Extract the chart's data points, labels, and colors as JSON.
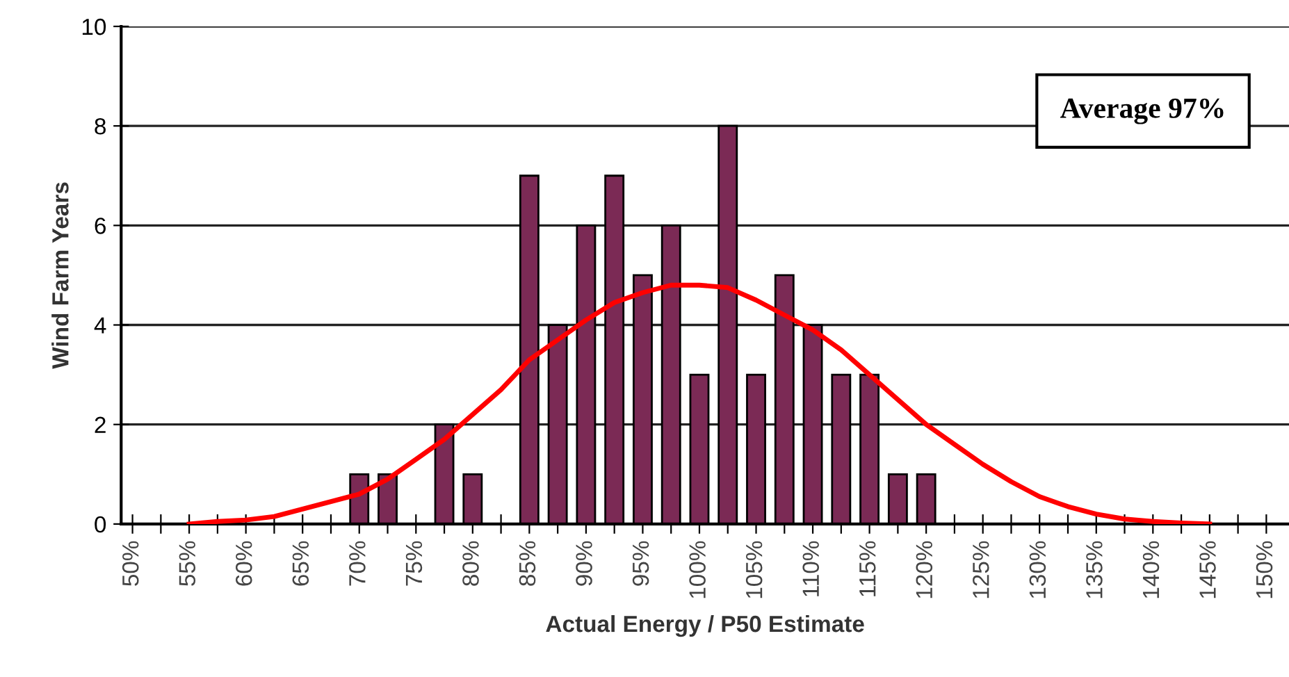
{
  "chart_data": {
    "type": "bar",
    "xlabel": "Actual Energy / P50 Estimate",
    "ylabel": "Wind Farm Years",
    "series": [
      {
        "color": "#7b2a55",
        "x": [
          70,
          72.5,
          77.5,
          80,
          85,
          87.5,
          90,
          92.5,
          95,
          97.5,
          100,
          102.5,
          105,
          107.5,
          110,
          112.5,
          115,
          117.5,
          120
        ],
        "values": [
          1,
          1,
          2,
          1,
          7,
          4,
          6,
          7,
          5,
          6,
          3,
          8,
          3,
          5,
          4,
          3,
          3,
          1,
          1
        ]
      },
      {
        "type": "line",
        "color": "#ff0000",
        "line_style": "solid",
        "x": [
          55,
          57.5,
          60,
          62.5,
          65,
          67.5,
          70,
          72.5,
          75,
          77.5,
          80,
          82.5,
          85,
          87.5,
          90,
          92.5,
          95,
          97.5,
          100,
          102.5,
          105,
          107.5,
          110,
          112.5,
          115,
          117.5,
          120,
          122.5,
          125,
          127.5,
          130,
          132.5,
          135,
          137.5,
          140,
          142.5,
          145
        ],
        "values": [
          0,
          0.05,
          0.08,
          0.15,
          0.3,
          0.45,
          0.6,
          0.9,
          1.3,
          1.7,
          2.2,
          2.7,
          3.3,
          3.7,
          4.1,
          4.45,
          4.65,
          4.8,
          4.8,
          4.75,
          4.5,
          4.2,
          3.9,
          3.5,
          3.0,
          2.5,
          2.0,
          1.6,
          1.2,
          0.85,
          0.55,
          0.35,
          0.2,
          0.1,
          0.05,
          0.02,
          0
        ]
      }
    ],
    "annotations": [
      "Average 97%"
    ],
    "xlim": [
      49,
      152
    ],
    "ylim": [
      0,
      10
    ],
    "yticks": [
      0,
      2,
      4,
      6,
      8,
      10
    ],
    "xticks": [
      {
        "value": 50,
        "label": "50%"
      },
      {
        "value": 52.5,
        "label": null
      },
      {
        "value": 55,
        "label": "55%"
      },
      {
        "value": 57.5,
        "label": null
      },
      {
        "value": 60,
        "label": "60%"
      },
      {
        "value": 62.5,
        "label": null
      },
      {
        "value": 65,
        "label": "65%"
      },
      {
        "value": 67.5,
        "label": null
      },
      {
        "value": 70,
        "label": "70%"
      },
      {
        "value": 72.5,
        "label": null
      },
      {
        "value": 75,
        "label": "75%"
      },
      {
        "value": 77.5,
        "label": null
      },
      {
        "value": 80,
        "label": "80%"
      },
      {
        "value": 82.5,
        "label": null
      },
      {
        "value": 85,
        "label": "85%"
      },
      {
        "value": 87.5,
        "label": null
      },
      {
        "value": 90,
        "label": "90%"
      },
      {
        "value": 92.5,
        "label": null
      },
      {
        "value": 95,
        "label": "95%"
      },
      {
        "value": 97.5,
        "label": null
      },
      {
        "value": 100,
        "label": "100%"
      },
      {
        "value": 102.5,
        "label": null
      },
      {
        "value": 105,
        "label": "105%"
      },
      {
        "value": 107.5,
        "label": null
      },
      {
        "value": 110,
        "label": "110%"
      },
      {
        "value": 112.5,
        "label": null
      },
      {
        "value": 115,
        "label": "115%"
      },
      {
        "value": 117.5,
        "label": null
      },
      {
        "value": 120,
        "label": "120%"
      },
      {
        "value": 122.5,
        "label": null
      },
      {
        "value": 125,
        "label": "125%"
      },
      {
        "value": 127.5,
        "label": null
      },
      {
        "value": 130,
        "label": "130%"
      },
      {
        "value": 132.5,
        "label": null
      },
      {
        "value": 135,
        "label": "135%"
      },
      {
        "value": 137.5,
        "label": null
      },
      {
        "value": 140,
        "label": "140%"
      },
      {
        "value": 142.5,
        "label": null
      },
      {
        "value": 145,
        "label": "145%"
      },
      {
        "value": 147.5,
        "label": null
      },
      {
        "value": 150,
        "label": "150%"
      }
    ],
    "grid": "y"
  }
}
